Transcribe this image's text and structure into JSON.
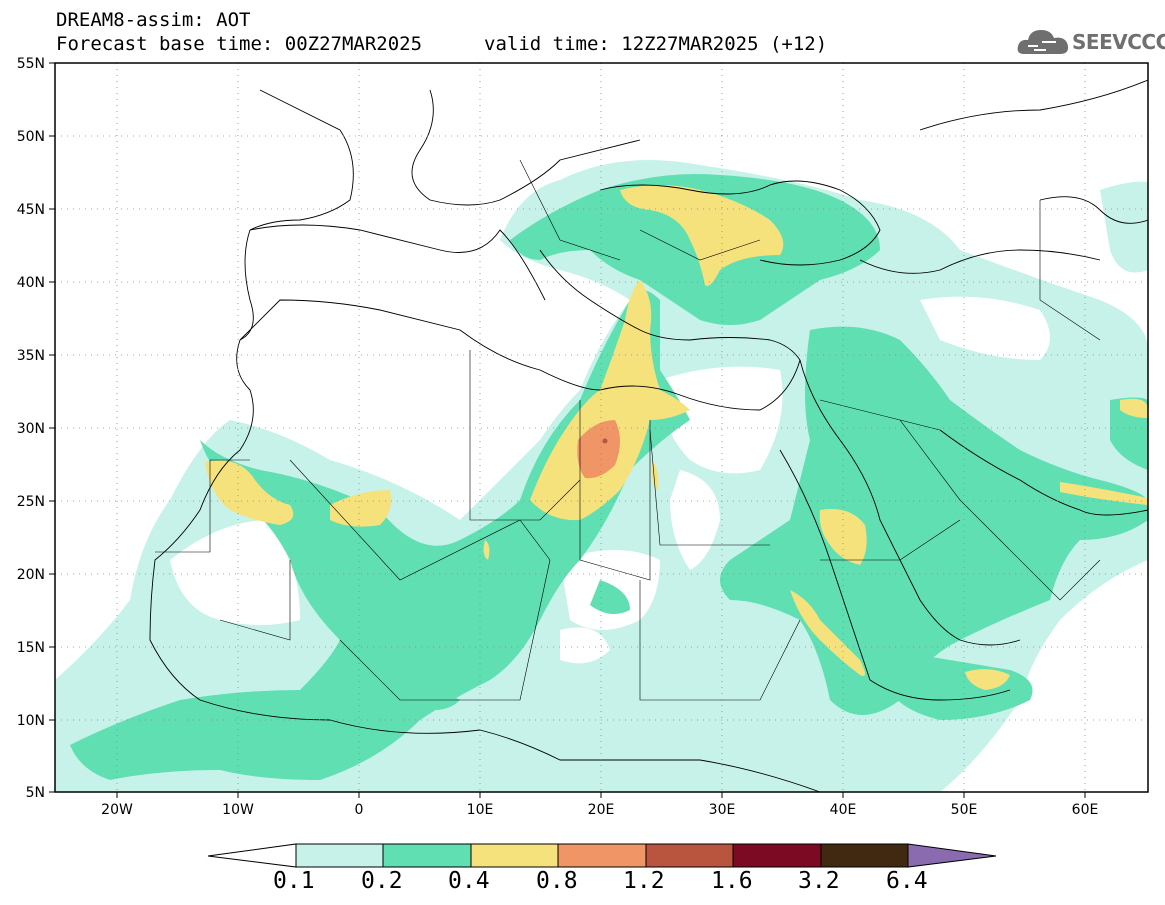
{
  "header": {
    "line1": "DREAM8-assim: AOT",
    "line2": "Forecast base time: 00Z27MAR2025",
    "valid": "valid time: 12Z27MAR2025 (+12)"
  },
  "logo": {
    "text": "SEEVCCC",
    "icon": "cloud-icon"
  },
  "map": {
    "lat_labels": [
      "55N",
      "50N",
      "45N",
      "40N",
      "35N",
      "30N",
      "25N",
      "20N",
      "15N",
      "10N",
      "5N"
    ],
    "lon_labels": [
      "20W",
      "10W",
      "0",
      "10E",
      "20E",
      "30E",
      "40E",
      "50E",
      "60E"
    ],
    "lon_range": [
      -25,
      65
    ],
    "lat_range": [
      5,
      55
    ]
  },
  "legend": {
    "thresholds": [
      "0.1",
      "0.2",
      "0.4",
      "0.8",
      "1.2",
      "1.6",
      "3.2",
      "6.4"
    ],
    "colors": [
      "#ffffff",
      "#c6f2ea",
      "#5fdfb2",
      "#f5e27c",
      "#ef9566",
      "#b9543f",
      "#7c0a22",
      "#412810",
      "#8b6bb0"
    ]
  }
}
